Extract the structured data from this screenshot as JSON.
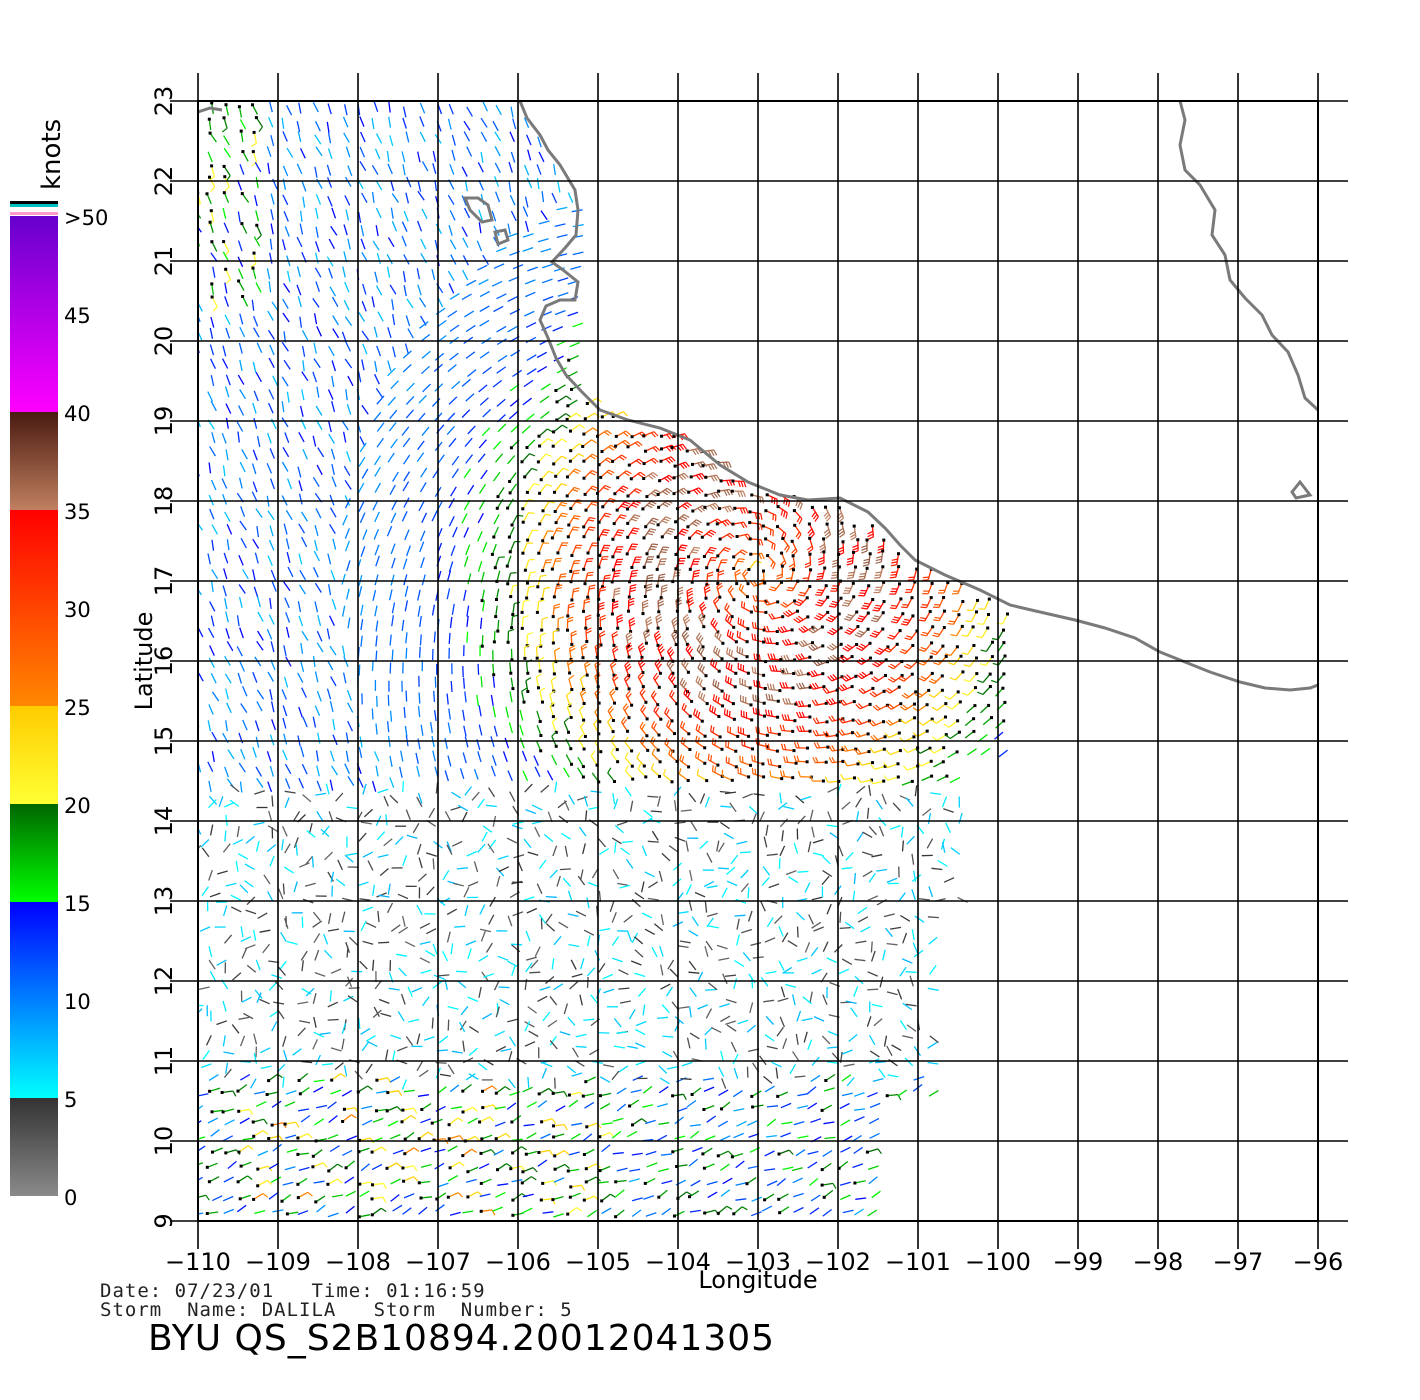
{
  "map": {
    "lon_range": [
      -110,
      -96
    ],
    "lat_range": [
      9,
      23
    ],
    "lon_ticks": [
      "−110",
      "−109",
      "−108",
      "−107",
      "−106",
      "−105",
      "−104",
      "−103",
      "−102",
      "−101",
      "−100",
      "−99",
      "−98",
      "−97",
      "−96"
    ],
    "lat_ticks": [
      "9",
      "10",
      "11",
      "12",
      "13",
      "14",
      "15",
      "16",
      "17",
      "18",
      "19",
      "20",
      "21",
      "22",
      "23"
    ],
    "xlabel": "Longitude",
    "ylabel": "Latitude",
    "grid": true,
    "storm_center": {
      "lon": -103,
      "lat": 17.1
    }
  },
  "colorbar": {
    "title": "knots",
    "labels": [
      "0",
      "5",
      "10",
      "15",
      "20",
      "25",
      "30",
      "35",
      "40",
      "45",
      ">50"
    ],
    "bands": [
      {
        "from": 0,
        "to": 5,
        "top": "#333333",
        "bottom": "#8a8a8a"
      },
      {
        "from": 5,
        "to": 15,
        "top": "#0000ff",
        "bottom": "#00ffff"
      },
      {
        "from": 15,
        "to": 20,
        "top": "#006600",
        "bottom": "#00ff00"
      },
      {
        "from": 20,
        "to": 25,
        "top": "#ffcc00",
        "bottom": "#ffff33"
      },
      {
        "from": 25,
        "to": 35,
        "top": "#ff0000",
        "bottom": "#ff8800"
      },
      {
        "from": 35,
        "to": 40,
        "top": "#4a1a10",
        "bottom": "#c08060"
      },
      {
        "from": 40,
        "to": 50,
        "top": "#6600cc",
        "bottom": "#ff00ff"
      }
    ]
  },
  "info": {
    "line1": "Date: 07/23/01   Time: 01:16:59",
    "line2": "Storm  Name: DALILA   Storm  Number: 5",
    "file_id": "BYU  QS_S2B10894.20012041305"
  }
}
